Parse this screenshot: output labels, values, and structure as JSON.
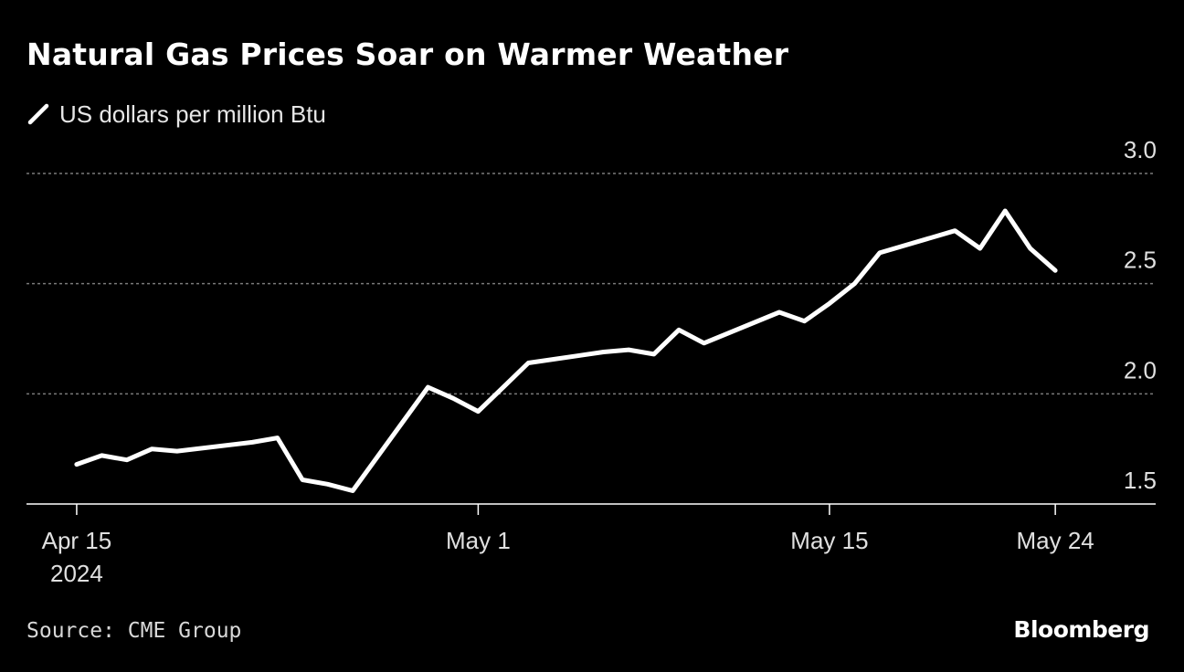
{
  "header": {
    "title": "Natural Gas Prices Soar on Warmer Weather"
  },
  "legend": {
    "label": "US dollars per million Btu"
  },
  "footer": {
    "source": "Source: CME Group",
    "brand": "Bloomberg"
  },
  "colors": {
    "background": "#000000",
    "line": "#ffffff",
    "grid": "#7a7a7a"
  },
  "chart_data": {
    "type": "line",
    "title": "Natural Gas Prices Soar on Warmer Weather",
    "ylabel": "US dollars per million Btu",
    "ylim": [
      1.5,
      3.0
    ],
    "xlim": [
      "2024-04-13",
      "2024-05-28"
    ],
    "yticks": [
      {
        "value": 1.5,
        "label": "1.5"
      },
      {
        "value": 2.0,
        "label": "2.0"
      },
      {
        "value": 2.5,
        "label": "2.5"
      },
      {
        "value": 3.0,
        "label": "3.0"
      }
    ],
    "xticks": [
      {
        "date": "2024-04-15",
        "label": "Apr 15",
        "sublabel": "2024"
      },
      {
        "date": "2024-05-01",
        "label": "May 1",
        "sublabel": ""
      },
      {
        "date": "2024-05-15",
        "label": "May 15",
        "sublabel": ""
      },
      {
        "date": "2024-05-24",
        "label": "May 24",
        "sublabel": ""
      }
    ],
    "grid": true,
    "series": [
      {
        "x": [
          "2024-04-15",
          "2024-04-16",
          "2024-04-17",
          "2024-04-18",
          "2024-04-19",
          "2024-04-22",
          "2024-04-23",
          "2024-04-24",
          "2024-04-25",
          "2024-04-26",
          "2024-04-29",
          "2024-04-30",
          "2024-05-01",
          "2024-05-02",
          "2024-05-03",
          "2024-05-06",
          "2024-05-07",
          "2024-05-08",
          "2024-05-09",
          "2024-05-10",
          "2024-05-13",
          "2024-05-14",
          "2024-05-15",
          "2024-05-16",
          "2024-05-17",
          "2024-05-20",
          "2024-05-21",
          "2024-05-22",
          "2024-05-23",
          "2024-05-24"
        ],
        "values": [
          1.68,
          1.72,
          1.7,
          1.75,
          1.74,
          1.78,
          1.8,
          1.61,
          1.59,
          1.56,
          2.03,
          1.98,
          1.92,
          2.03,
          2.14,
          2.19,
          2.2,
          2.18,
          2.29,
          2.23,
          2.37,
          2.33,
          2.41,
          2.5,
          2.64,
          2.74,
          2.66,
          2.83,
          2.66,
          2.56
        ]
      }
    ]
  }
}
